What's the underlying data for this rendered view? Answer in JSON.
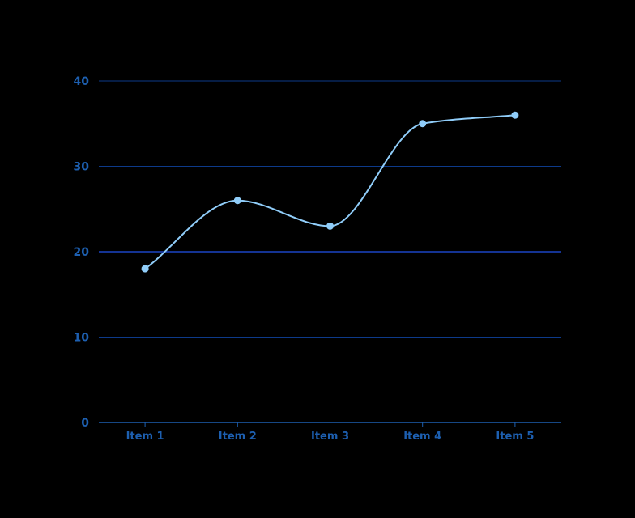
{
  "chart_data": {
    "type": "line",
    "categories": [
      "Item 1",
      "Item 2",
      "Item 3",
      "Item 4",
      "Item 5"
    ],
    "series": [
      {
        "values": [
          18,
          26,
          23,
          35,
          36
        ]
      }
    ],
    "yticks": [
      0,
      10,
      20,
      30,
      40
    ],
    "ylim": [
      0,
      40
    ],
    "curve": "smooth",
    "markers": true,
    "grid": true,
    "legend": "none",
    "colors": {
      "background": "#000000",
      "line": "#90cdf9",
      "marker": "#90cdf9",
      "grid": "#0d3a8a",
      "grid_emphasis": "#1a44c4",
      "axis": "#1d5fb0",
      "tick_text": "#1d5fb0"
    }
  }
}
